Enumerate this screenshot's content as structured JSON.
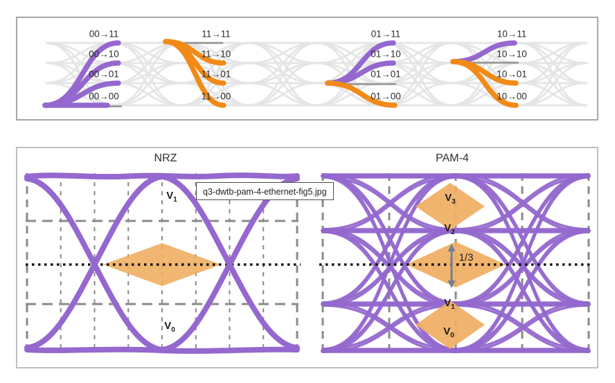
{
  "colors": {
    "rising": "#9468CE",
    "falling": "#F28A18",
    "hold": "#909090",
    "eye_mask": "#F0AE62",
    "grid": "#8a8a8a",
    "dotted_threshold": "#111111",
    "bg_mesh": "#E3E3E3",
    "arrow": "#6E8090"
  },
  "transition_panel": {
    "groups": [
      {
        "name": "from-00",
        "transitions": [
          {
            "label": "00→11"
          },
          {
            "label": "00→10"
          },
          {
            "label": "00→01"
          },
          {
            "label": "00→00"
          }
        ]
      },
      {
        "name": "from-11",
        "transitions": [
          {
            "label": "11→11"
          },
          {
            "label": "11→10"
          },
          {
            "label": "11→01"
          },
          {
            "label": "11→00"
          }
        ]
      },
      {
        "name": "from-01",
        "transitions": [
          {
            "label": "01→11"
          },
          {
            "label": "01→10"
          },
          {
            "label": "01→01"
          },
          {
            "label": "01→00"
          }
        ]
      },
      {
        "name": "from-10",
        "transitions": [
          {
            "label": "10→11"
          },
          {
            "label": "10→10"
          },
          {
            "label": "10→01"
          },
          {
            "label": "10→00"
          }
        ]
      }
    ]
  },
  "eye_panel": {
    "nrz": {
      "title": "NRZ",
      "levels": [
        {
          "base": "V",
          "sub": "1"
        },
        {
          "base": "V",
          "sub": "0"
        }
      ]
    },
    "pam4": {
      "title": "PAM-4",
      "levels": [
        {
          "base": "V",
          "sub": "3"
        },
        {
          "base": "V",
          "sub": "2"
        },
        {
          "base": "V",
          "sub": "1"
        },
        {
          "base": "V",
          "sub": "0"
        }
      ],
      "eye_height_label": "1/3"
    }
  },
  "tooltip": {
    "text": "q3-dwtb-pam-4-ethernet-fig5.jpg"
  }
}
